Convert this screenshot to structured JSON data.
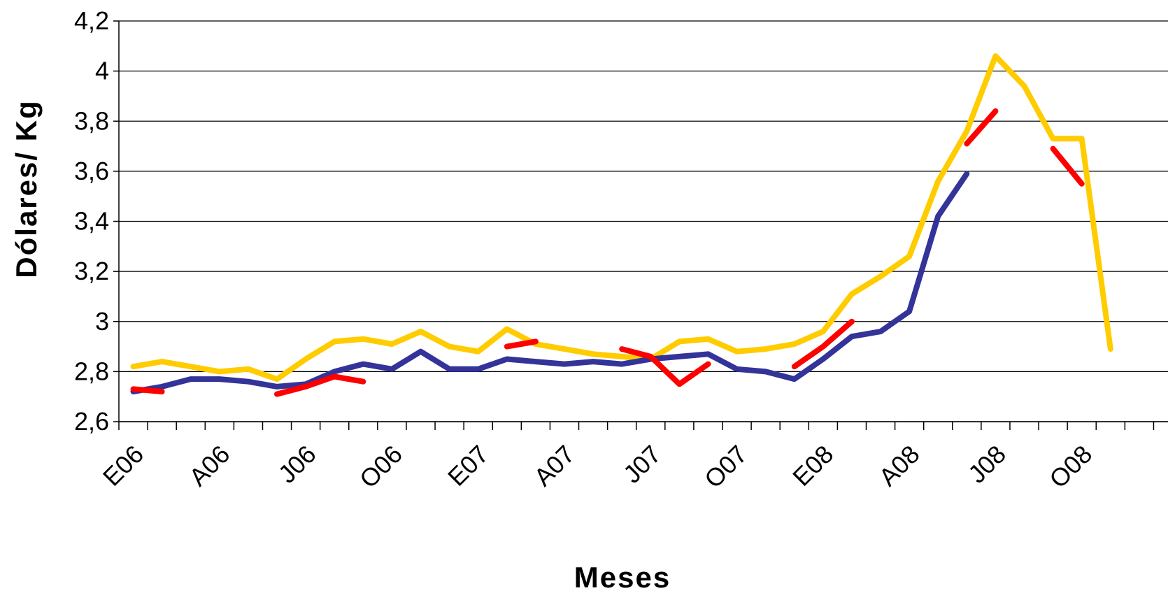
{
  "chart_data": {
    "type": "line",
    "title": "",
    "xlabel": "Meses",
    "ylabel": "Dólares/ Kg",
    "ylim": [
      2.6,
      4.2
    ],
    "yticks": [
      "2,6",
      "2,8",
      "3",
      "3,2",
      "3,4",
      "3,6",
      "3,8",
      "4",
      "4,2"
    ],
    "ytick_values": [
      2.6,
      2.8,
      3.0,
      3.2,
      3.4,
      3.6,
      3.8,
      4.0,
      4.2
    ],
    "xtick_labels": [
      {
        "index": 0,
        "label": "E06"
      },
      {
        "index": 3,
        "label": "A06"
      },
      {
        "index": 6,
        "label": "J06"
      },
      {
        "index": 9,
        "label": "O06"
      },
      {
        "index": 12,
        "label": "E07"
      },
      {
        "index": 15,
        "label": "A07"
      },
      {
        "index": 18,
        "label": "J07"
      },
      {
        "index": 21,
        "label": "O07"
      },
      {
        "index": 24,
        "label": "E08"
      },
      {
        "index": 27,
        "label": "A08"
      },
      {
        "index": 30,
        "label": "J08"
      },
      {
        "index": 33,
        "label": "O08"
      }
    ],
    "n_categories": 36,
    "grid": true,
    "legend": "none",
    "series": [
      {
        "color": "#ffcc00",
        "values": [
          2.82,
          2.84,
          2.82,
          2.8,
          2.81,
          2.77,
          2.85,
          2.92,
          2.93,
          2.91,
          2.96,
          2.9,
          2.88,
          2.97,
          2.91,
          2.89,
          2.87,
          2.86,
          2.85,
          2.92,
          2.93,
          2.88,
          2.89,
          2.91,
          2.96,
          3.11,
          3.18,
          3.26,
          3.56,
          3.76,
          4.06,
          3.94,
          3.73,
          3.73,
          2.89,
          null
        ]
      },
      {
        "color": "#333399",
        "values": [
          2.72,
          2.74,
          2.77,
          2.77,
          2.76,
          2.74,
          2.75,
          2.8,
          2.83,
          2.81,
          2.88,
          2.81,
          2.81,
          2.85,
          2.84,
          2.83,
          2.84,
          2.83,
          2.85,
          2.86,
          2.87,
          2.81,
          2.8,
          2.77,
          2.85,
          2.94,
          2.96,
          3.04,
          3.42,
          3.59,
          null,
          null,
          null,
          null,
          null,
          null
        ]
      },
      {
        "color": "#ff0000",
        "values": [
          2.73,
          2.72,
          null,
          null,
          null,
          2.71,
          2.74,
          2.78,
          2.76,
          null,
          null,
          null,
          null,
          2.9,
          2.92,
          null,
          null,
          2.89,
          2.86,
          2.75,
          2.83,
          null,
          null,
          2.82,
          2.9,
          3.0,
          null,
          null,
          null,
          3.71,
          3.84,
          null,
          3.69,
          3.55,
          null,
          null
        ]
      }
    ]
  }
}
